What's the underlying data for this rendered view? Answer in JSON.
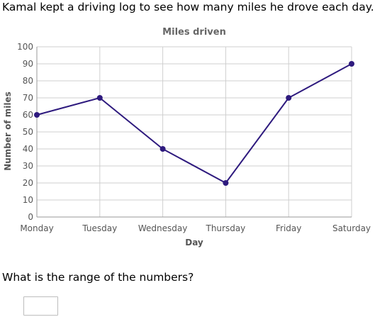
{
  "prompt": "Kamal kept a driving log to see how many miles he drove each day.",
  "question": "What is the range of the numbers?",
  "answer": {
    "value": ""
  },
  "chart_data": {
    "type": "line",
    "title": "Miles driven",
    "xlabel": "Day",
    "ylabel": "Number of miles",
    "categories": [
      "Monday",
      "Tuesday",
      "Wednesday",
      "Thursday",
      "Friday",
      "Saturday"
    ],
    "values": [
      60,
      70,
      40,
      20,
      70,
      90
    ],
    "ylim": [
      0,
      100
    ],
    "yticks": [
      "0",
      "10",
      "20",
      "30",
      "40",
      "50",
      "60",
      "70",
      "80",
      "90",
      "100"
    ],
    "grid": true,
    "line_color": "#2e1a7e",
    "grid_color": "#cfcfcf"
  }
}
